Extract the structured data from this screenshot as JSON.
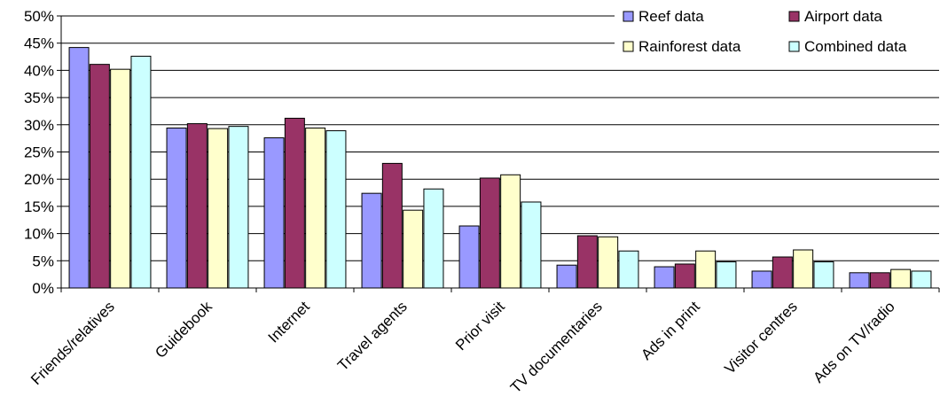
{
  "chart_data": {
    "type": "bar",
    "title": "",
    "xlabel": "",
    "ylabel": "",
    "ylim": [
      0,
      50
    ],
    "y_ticks": [
      "0%",
      "5%",
      "10%",
      "15%",
      "20%",
      "25%",
      "30%",
      "35%",
      "40%",
      "45%",
      "50%"
    ],
    "grid": true,
    "legend_position": "top-right",
    "categories": [
      "Friends/relatives",
      "Guidebook",
      "Internet",
      "Travel agents",
      "Prior visit",
      "TV documentaries",
      "Ads in print",
      "Visitor centres",
      "Ads on TV/radio"
    ],
    "series": [
      {
        "name": "Reef data",
        "color": "#9999ff",
        "values": [
          44.2,
          29.4,
          27.6,
          17.4,
          11.4,
          4.2,
          3.9,
          3.1,
          2.8
        ]
      },
      {
        "name": "Airport data",
        "color": "#993366",
        "values": [
          41.1,
          30.2,
          31.2,
          22.9,
          20.2,
          9.6,
          4.4,
          5.7,
          2.8
        ]
      },
      {
        "name": "Rainforest data",
        "color": "#ffffcc",
        "values": [
          40.2,
          29.3,
          29.4,
          14.3,
          20.8,
          9.4,
          6.8,
          7.0,
          3.4
        ]
      },
      {
        "name": "Combined data",
        "color": "#ccffff",
        "values": [
          42.6,
          29.7,
          28.9,
          18.2,
          15.8,
          6.8,
          4.8,
          4.8,
          3.1
        ]
      }
    ]
  }
}
